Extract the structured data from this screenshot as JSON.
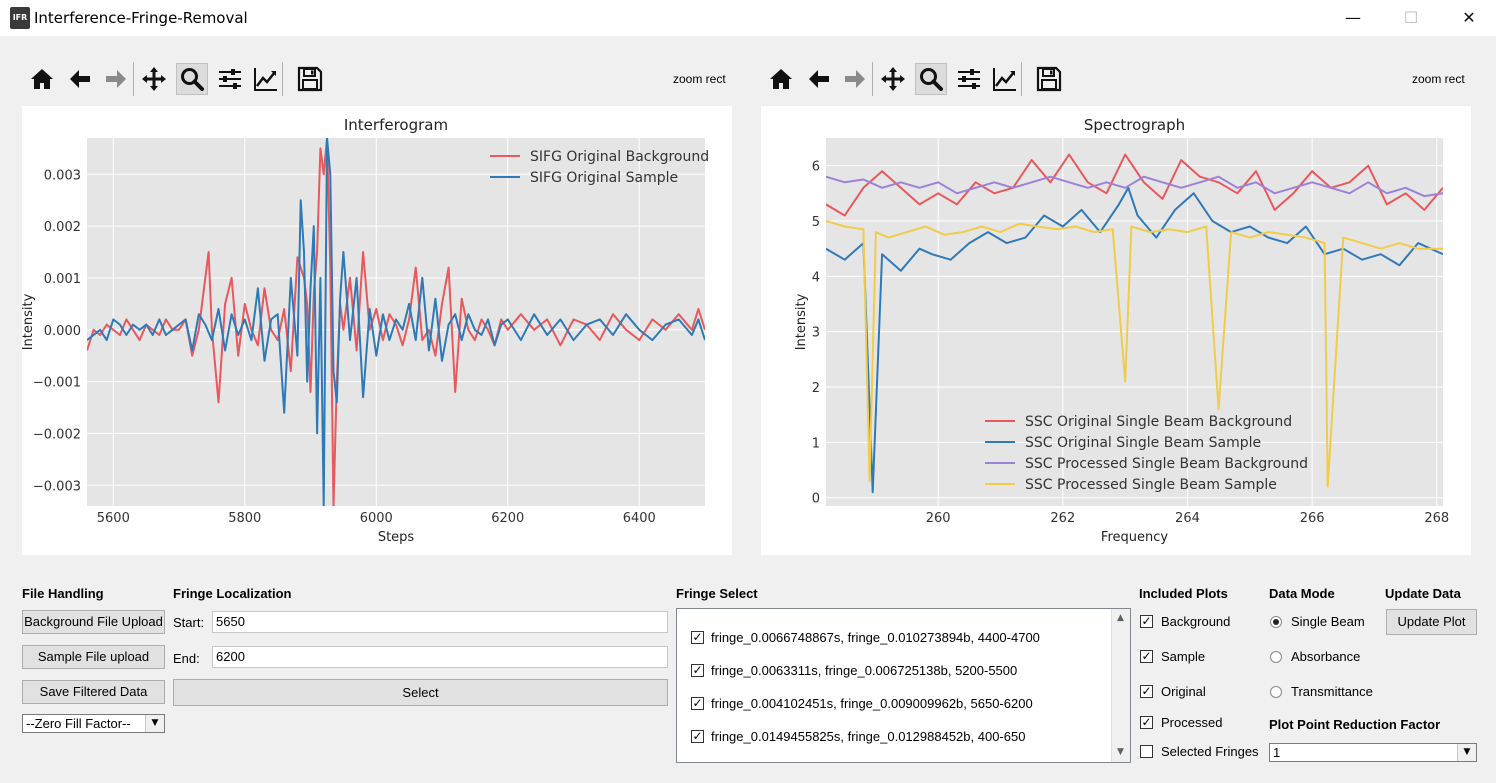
{
  "window": {
    "title": "Interference-Fringe-Removal",
    "icon_text": "IFR",
    "minimize": "—",
    "maximize": "☐",
    "close": "✕"
  },
  "toolbar": {
    "mode_label": "zoom rect",
    "icons": [
      "home-icon",
      "back-arrow-icon",
      "forward-arrow-icon",
      "pan-icon",
      "zoom-icon",
      "subplots-icon",
      "edit-curves-icon",
      "save-icon"
    ]
  },
  "interferogram": {
    "chart_data": {
      "type": "line",
      "title": "Interferogram",
      "xlabel": "Steps",
      "ylabel": "Intensity",
      "xlim": [
        5560,
        6500
      ],
      "ylim": [
        -0.0034,
        0.0037
      ],
      "xticks": [
        5600,
        5800,
        6000,
        6200,
        6400
      ],
      "yticks": [
        0.003,
        0.002,
        0.001,
        0.0,
        -0.001,
        -0.002,
        -0.003
      ],
      "ytick_labels": [
        "0.003",
        "0.002",
        "0.001",
        "0.000",
        "−0.001",
        "−0.002",
        "−0.003"
      ],
      "grid": true,
      "legend": "top-right",
      "series": [
        {
          "name": "SIFG Original Background",
          "color": "#e8585c",
          "x": [
            5560,
            5570,
            5580,
            5590,
            5600,
            5610,
            5620,
            5630,
            5640,
            5650,
            5660,
            5670,
            5680,
            5690,
            5700,
            5710,
            5720,
            5730,
            5740,
            5745,
            5750,
            5760,
            5770,
            5780,
            5790,
            5800,
            5810,
            5820,
            5830,
            5840,
            5850,
            5860,
            5870,
            5880,
            5890,
            5895,
            5900,
            5905,
            5910,
            5915,
            5920,
            5925,
            5930,
            5935,
            5940,
            5945,
            5950,
            5960,
            5970,
            5980,
            5990,
            6000,
            6010,
            6020,
            6030,
            6040,
            6050,
            6060,
            6070,
            6080,
            6090,
            6100,
            6110,
            6120,
            6130,
            6140,
            6150,
            6160,
            6170,
            6180,
            6190,
            6200,
            6220,
            6240,
            6260,
            6280,
            6300,
            6320,
            6340,
            6360,
            6380,
            6400,
            6420,
            6440,
            6460,
            6480,
            6490,
            6500
          ],
          "y": [
            -0.0004,
            0.0,
            -0.0001,
            0.0001,
            0.0,
            -0.0001,
            0.0002,
            0.0,
            -0.0002,
            0.0001,
            0.0,
            -0.0001,
            0.0002,
            0.0,
            0.0,
            0.0002,
            -0.0005,
            0.0,
            0.001,
            0.0015,
            0.0,
            -0.0014,
            0.0005,
            0.001,
            -0.0005,
            0.0005,
            0.0,
            -0.0003,
            0.0008,
            0.0,
            -0.0002,
            0.0004,
            -0.0008,
            0.0014,
            0.001,
            0.0005,
            -0.0012,
            0.0007,
            0.0015,
            0.0035,
            0.003,
            0.0037,
            0.0012,
            -0.0034,
            -0.001,
            0.0005,
            0.0,
            0.001,
            -0.0004,
            0.0015,
            0.0,
            0.0004,
            -0.0002,
            0.0003,
            0.0001,
            -0.0003,
            0.0002,
            0.0012,
            -0.0002,
            0.0,
            -0.0005,
            0.0005,
            0.0012,
            -0.0012,
            0.0006,
            0.0,
            -0.0002,
            0.0002,
            0.0,
            -0.0003,
            0.0002,
            0.0,
            0.0003,
            0.0,
            0.0002,
            -0.0003,
            0.0002,
            0.0001,
            -0.0002,
            0.0003,
            0.0,
            -0.0002,
            0.0002,
            0.0,
            0.0003,
            0.0,
            0.0004,
            0.0
          ]
        },
        {
          "name": "SIFG Original Sample",
          "color": "#2e7ab8",
          "x": [
            5560,
            5570,
            5580,
            5590,
            5600,
            5610,
            5620,
            5630,
            5640,
            5650,
            5660,
            5670,
            5680,
            5690,
            5700,
            5710,
            5720,
            5730,
            5740,
            5750,
            5760,
            5770,
            5780,
            5790,
            5800,
            5810,
            5820,
            5830,
            5840,
            5850,
            5860,
            5870,
            5880,
            5885,
            5890,
            5895,
            5900,
            5905,
            5910,
            5915,
            5920,
            5925,
            5930,
            5935,
            5940,
            5945,
            5950,
            5960,
            5970,
            5980,
            5990,
            6000,
            6010,
            6020,
            6030,
            6040,
            6050,
            6060,
            6070,
            6080,
            6090,
            6100,
            6110,
            6120,
            6130,
            6140,
            6150,
            6160,
            6170,
            6180,
            6190,
            6200,
            6220,
            6240,
            6260,
            6280,
            6300,
            6320,
            6340,
            6360,
            6380,
            6400,
            6420,
            6440,
            6460,
            6480,
            6490,
            6500
          ],
          "y": [
            -0.0002,
            -0.0001,
            0.0,
            -0.0002,
            0.0002,
            0.0001,
            -0.0001,
            0.0001,
            0.0,
            0.0001,
            -0.0001,
            0.0002,
            -0.0001,
            0.0,
            0.0001,
            0.0002,
            -0.0004,
            0.0003,
            0.0001,
            -0.0002,
            0.0004,
            -0.0004,
            0.0003,
            -0.0001,
            0.0002,
            -0.0002,
            0.0008,
            -0.0006,
            0.0002,
            0.0003,
            -0.0016,
            0.001,
            -0.0005,
            0.0025,
            0.0015,
            -0.001,
            0.0008,
            0.002,
            -0.002,
            0.001,
            -0.0034,
            0.0037,
            0.003,
            -0.0008,
            -0.0014,
            0.0006,
            0.0015,
            -0.0002,
            0.001,
            -0.0013,
            0.0004,
            -0.0005,
            0.0003,
            -0.0002,
            0.0002,
            0.0,
            0.0005,
            -0.0002,
            0.001,
            -0.0004,
            0.0006,
            -0.0006,
            0.0001,
            0.0003,
            -0.0002,
            0.0003,
            0.0,
            -0.0001,
            0.0002,
            -0.0003,
            0.0001,
            0.0002,
            -0.0002,
            0.0003,
            -0.0001,
            0.0002,
            -0.0002,
            0.0001,
            0.0002,
            -0.0001,
            0.0003,
            0.0,
            -0.0002,
            0.0001,
            0.0002,
            -0.0001,
            0.0002,
            -0.0002
          ]
        }
      ]
    }
  },
  "spectrograph": {
    "chart_data": {
      "type": "line",
      "title": "Spectrograph",
      "xlabel": "Frequency",
      "ylabel": "Intensity",
      "xlim": [
        258.2,
        268.1
      ],
      "ylim": [
        -0.15,
        6.5
      ],
      "xticks": [
        260,
        262,
        264,
        266,
        268
      ],
      "yticks": [
        0,
        1,
        2,
        3,
        4,
        5,
        6
      ],
      "grid": true,
      "legend": "lower-center",
      "series": [
        {
          "name": "SSC Original Single Beam Background",
          "color": "#e8585c",
          "x": [
            258.2,
            258.5,
            258.8,
            259.1,
            259.4,
            259.7,
            260.0,
            260.3,
            260.6,
            260.9,
            261.2,
            261.5,
            261.8,
            262.1,
            262.4,
            262.7,
            263.0,
            263.3,
            263.6,
            263.9,
            264.2,
            264.5,
            264.8,
            265.1,
            265.4,
            265.7,
            266.0,
            266.3,
            266.6,
            266.9,
            267.2,
            267.5,
            267.8,
            268.1
          ],
          "y": [
            5.3,
            5.1,
            5.6,
            5.9,
            5.6,
            5.3,
            5.5,
            5.3,
            5.7,
            5.5,
            5.6,
            6.1,
            5.7,
            6.2,
            5.7,
            5.5,
            6.2,
            5.7,
            5.4,
            6.1,
            5.8,
            5.7,
            5.5,
            5.9,
            5.2,
            5.5,
            5.9,
            5.6,
            5.7,
            6.0,
            5.3,
            5.5,
            5.2,
            5.6
          ]
        },
        {
          "name": "SSC Original Single Beam Sample",
          "color": "#2e7ab8",
          "x": [
            258.2,
            258.5,
            258.8,
            258.95,
            259.1,
            259.4,
            259.7,
            259.9,
            260.2,
            260.5,
            260.8,
            261.1,
            261.4,
            261.7,
            262.0,
            262.3,
            262.6,
            262.9,
            263.05,
            263.2,
            263.5,
            263.8,
            264.1,
            264.4,
            264.7,
            265.0,
            265.3,
            265.6,
            265.9,
            266.2,
            266.5,
            266.8,
            267.1,
            267.4,
            267.7,
            268.1
          ],
          "y": [
            4.5,
            4.3,
            4.6,
            0.1,
            4.4,
            4.1,
            4.5,
            4.4,
            4.3,
            4.6,
            4.8,
            4.6,
            4.7,
            5.1,
            4.9,
            5.2,
            4.8,
            5.3,
            5.6,
            5.1,
            4.7,
            5.2,
            5.5,
            5.0,
            4.8,
            4.9,
            4.7,
            4.6,
            4.9,
            4.4,
            4.5,
            4.3,
            4.4,
            4.2,
            4.6,
            4.4
          ]
        },
        {
          "name": "SSC Processed Single Beam Background",
          "color": "#9b82d8",
          "x": [
            258.2,
            258.5,
            258.8,
            259.1,
            259.4,
            259.7,
            260.0,
            260.3,
            260.6,
            260.9,
            261.2,
            261.5,
            261.8,
            262.1,
            262.4,
            262.7,
            263.0,
            263.3,
            263.6,
            263.9,
            264.2,
            264.5,
            264.8,
            265.1,
            265.4,
            265.7,
            266.0,
            266.3,
            266.6,
            266.9,
            267.2,
            267.5,
            267.8,
            268.1
          ],
          "y": [
            5.8,
            5.7,
            5.75,
            5.6,
            5.7,
            5.6,
            5.7,
            5.5,
            5.6,
            5.7,
            5.6,
            5.7,
            5.8,
            5.7,
            5.6,
            5.7,
            5.6,
            5.8,
            5.7,
            5.6,
            5.7,
            5.8,
            5.6,
            5.7,
            5.5,
            5.6,
            5.7,
            5.6,
            5.5,
            5.7,
            5.5,
            5.6,
            5.45,
            5.5
          ]
        },
        {
          "name": "SSC Processed Single Beam Sample",
          "color": "#f0cc4a",
          "x": [
            258.2,
            258.5,
            258.8,
            258.9,
            259.0,
            259.2,
            259.5,
            259.8,
            260.1,
            260.4,
            260.7,
            261.0,
            261.3,
            261.6,
            261.9,
            262.2,
            262.5,
            262.8,
            263.0,
            263.1,
            263.4,
            263.7,
            264.0,
            264.3,
            264.5,
            264.7,
            265.0,
            265.3,
            265.6,
            265.9,
            266.2,
            266.25,
            266.5,
            266.8,
            267.1,
            267.4,
            267.7,
            268.1
          ],
          "y": [
            5.0,
            4.9,
            4.85,
            0.3,
            4.8,
            4.7,
            4.8,
            4.9,
            4.75,
            4.8,
            4.9,
            4.8,
            4.95,
            4.9,
            4.85,
            4.9,
            4.8,
            4.85,
            2.1,
            4.9,
            4.8,
            4.85,
            4.8,
            4.9,
            1.6,
            4.8,
            4.7,
            4.8,
            4.75,
            4.7,
            4.6,
            0.2,
            4.7,
            4.6,
            4.5,
            4.6,
            4.5,
            4.5
          ]
        }
      ]
    }
  },
  "file_handling": {
    "title": "File Handling",
    "bg_upload": "Background File Upload",
    "sample_upload": "Sample File upload",
    "save": "Save Filtered Data",
    "zero_fill": "--Zero Fill Factor--"
  },
  "fringe_localization": {
    "title": "Fringe Localization",
    "start_label": "Start:",
    "start_value": "5650",
    "end_label": "End:",
    "end_value": "6200",
    "select": "Select"
  },
  "fringe_select": {
    "title": "Fringe Select",
    "items": [
      {
        "label": "fringe_0.0066748867s, fringe_0.010273894b, 4400-4700",
        "checked": true
      },
      {
        "label": "fringe_0.0063311s, fringe_0.006725138b, 5200-5500",
        "checked": true
      },
      {
        "label": "fringe_0.004102451s, fringe_0.009009962b, 5650-6200",
        "checked": true
      },
      {
        "label": "fringe_0.0149455825s, fringe_0.012988452b, 400-650",
        "checked": true
      }
    ]
  },
  "included_plots": {
    "title": "Included Plots",
    "items": [
      {
        "label": "Background",
        "checked": true
      },
      {
        "label": "Sample",
        "checked": true
      },
      {
        "label": "Original",
        "checked": true
      },
      {
        "label": "Processed",
        "checked": true
      },
      {
        "label": "Selected Fringes",
        "checked": false
      }
    ]
  },
  "data_mode": {
    "title": "Data Mode",
    "options": [
      {
        "label": "Single Beam",
        "selected": true
      },
      {
        "label": "Absorbance",
        "selected": false
      },
      {
        "label": "Transmittance",
        "selected": false
      }
    ]
  },
  "update": {
    "title": "Update Data",
    "button": "Update Plot"
  },
  "reduction": {
    "title": "Plot Point Reduction Factor",
    "value": "1"
  },
  "check_mark": "✓"
}
